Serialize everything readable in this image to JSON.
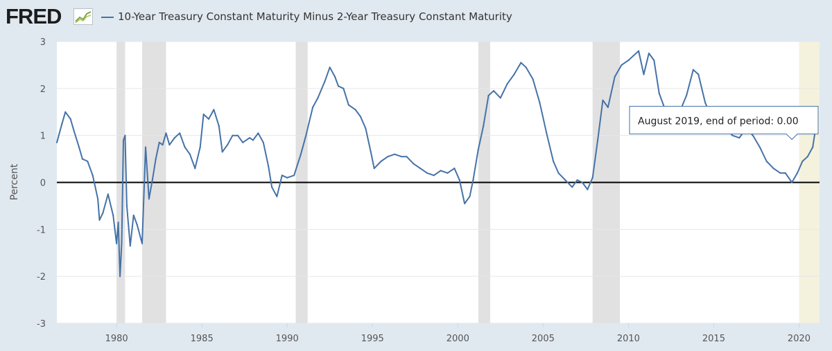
{
  "header": {
    "logo_text": "FRED",
    "logo_icon": "line-chart-icon",
    "legend_label": "10-Year Treasury Constant Maturity Minus 2-Year Treasury Constant Maturity"
  },
  "tooltip": {
    "text": "August 2019, end of period: 0.00",
    "x": 2019.58,
    "y": 0.0
  },
  "chart_data": {
    "type": "line",
    "title": "10-Year Treasury Constant Maturity Minus 2-Year Treasury Constant Maturity",
    "xlabel": "",
    "ylabel": "Percent",
    "xlim": [
      1976.5,
      2021.2
    ],
    "ylim": [
      -3,
      3
    ],
    "x_ticks": [
      1980,
      1985,
      1990,
      1995,
      2000,
      2005,
      2010,
      2015,
      2020
    ],
    "x_tick_labels": [
      "1980",
      "1985",
      "1990",
      "1995",
      "2000",
      "2005",
      "2010",
      "2015",
      "2020"
    ],
    "y_ticks": [
      -3,
      -2,
      -1,
      0,
      1,
      2,
      3
    ],
    "y_tick_labels": [
      "-3",
      "-2",
      "-1",
      "0",
      "1",
      "2",
      "3"
    ],
    "grid": true,
    "line_color": "#4572a7",
    "recessions": [
      [
        1980.0,
        1980.5
      ],
      [
        1981.5,
        1982.9
      ],
      [
        1990.5,
        1991.2
      ],
      [
        2001.2,
        2001.9
      ],
      [
        2007.9,
        2009.5
      ],
      [
        2020.0,
        2021.2
      ]
    ],
    "recession_colors": [
      "#e1e1e1",
      "#e1e1e1",
      "#e1e1e1",
      "#e1e1e1",
      "#e1e1e1",
      "#f4f2dd"
    ],
    "series": [
      {
        "x": [
          1976.5,
          1976.8,
          1977.0,
          1977.3,
          1977.5,
          1977.8,
          1978.0,
          1978.3,
          1978.6,
          1978.9,
          1979.0,
          1979.2,
          1979.5,
          1979.8,
          1980.0,
          1980.1,
          1980.2,
          1980.3,
          1980.4,
          1980.5,
          1980.6,
          1980.8,
          1981.0,
          1981.2,
          1981.5,
          1981.7,
          1981.9,
          1982.1,
          1982.3,
          1982.5,
          1982.7,
          1982.9,
          1983.1,
          1983.4,
          1983.7,
          1984.0,
          1984.3,
          1984.6,
          1984.9,
          1985.1,
          1985.4,
          1985.7,
          1986.0,
          1986.2,
          1986.5,
          1986.8,
          1987.1,
          1987.4,
          1987.8,
          1988.0,
          1988.3,
          1988.6,
          1988.9,
          1989.1,
          1989.4,
          1989.7,
          1990.0,
          1990.4,
          1990.8,
          1991.1,
          1991.5,
          1991.8,
          1992.2,
          1992.5,
          1992.8,
          1993.0,
          1993.3,
          1993.6,
          1994.0,
          1994.3,
          1994.6,
          1994.9,
          1995.1,
          1995.5,
          1995.9,
          1996.3,
          1996.7,
          1997.0,
          1997.4,
          1997.8,
          1998.2,
          1998.6,
          1999.0,
          1999.4,
          1999.8,
          2000.1,
          2000.4,
          2000.7,
          2000.9,
          2001.2,
          2001.5,
          2001.8,
          2002.1,
          2002.5,
          2002.9,
          2003.3,
          2003.7,
          2004.0,
          2004.4,
          2004.8,
          2005.2,
          2005.6,
          2005.9,
          2006.3,
          2006.7,
          2007.0,
          2007.3,
          2007.6,
          2007.9,
          2008.2,
          2008.5,
          2008.8,
          2009.2,
          2009.6,
          2010.0,
          2010.3,
          2010.6,
          2010.9,
          2011.2,
          2011.5,
          2011.8,
          2012.1,
          2012.4,
          2012.7,
          2013.0,
          2013.4,
          2013.8,
          2014.1,
          2014.5,
          2014.9,
          2015.3,
          2015.7,
          2016.1,
          2016.5,
          2016.9,
          2017.3,
          2017.7,
          2018.1,
          2018.5,
          2018.9,
          2019.2,
          2019.58,
          2019.9,
          2020.2,
          2020.5,
          2020.8,
          2021.1
        ],
        "values": [
          0.85,
          1.25,
          1.5,
          1.35,
          1.1,
          0.75,
          0.5,
          0.45,
          0.15,
          -0.35,
          -0.8,
          -0.65,
          -0.25,
          -0.7,
          -1.3,
          -0.85,
          -2.0,
          -1.3,
          0.9,
          1.0,
          -0.5,
          -1.35,
          -0.7,
          -0.9,
          -1.3,
          0.75,
          -0.35,
          0.05,
          0.5,
          0.85,
          0.8,
          1.05,
          0.8,
          0.95,
          1.05,
          0.75,
          0.6,
          0.3,
          0.75,
          1.45,
          1.35,
          1.55,
          1.2,
          0.65,
          0.8,
          1.0,
          1.0,
          0.85,
          0.95,
          0.9,
          1.05,
          0.85,
          0.35,
          -0.1,
          -0.3,
          0.15,
          0.1,
          0.15,
          0.6,
          1.0,
          1.6,
          1.8,
          2.15,
          2.45,
          2.25,
          2.05,
          2.0,
          1.65,
          1.55,
          1.4,
          1.15,
          0.65,
          0.3,
          0.45,
          0.55,
          0.6,
          0.55,
          0.55,
          0.4,
          0.3,
          0.2,
          0.15,
          0.25,
          0.2,
          0.3,
          0.05,
          -0.45,
          -0.3,
          0.05,
          0.7,
          1.2,
          1.85,
          1.95,
          1.8,
          2.1,
          2.3,
          2.55,
          2.45,
          2.2,
          1.7,
          1.05,
          0.45,
          0.2,
          0.05,
          -0.1,
          0.05,
          0.0,
          -0.15,
          0.1,
          0.9,
          1.75,
          1.6,
          2.25,
          2.5,
          2.6,
          2.7,
          2.8,
          2.3,
          2.75,
          2.6,
          1.9,
          1.6,
          1.5,
          1.3,
          1.5,
          1.85,
          2.4,
          2.3,
          1.7,
          1.35,
          1.35,
          1.15,
          1.0,
          0.95,
          1.15,
          1.0,
          0.75,
          0.45,
          0.3,
          0.2,
          0.2,
          0.0,
          0.2,
          0.45,
          0.55,
          0.75,
          1.45
        ]
      }
    ]
  }
}
